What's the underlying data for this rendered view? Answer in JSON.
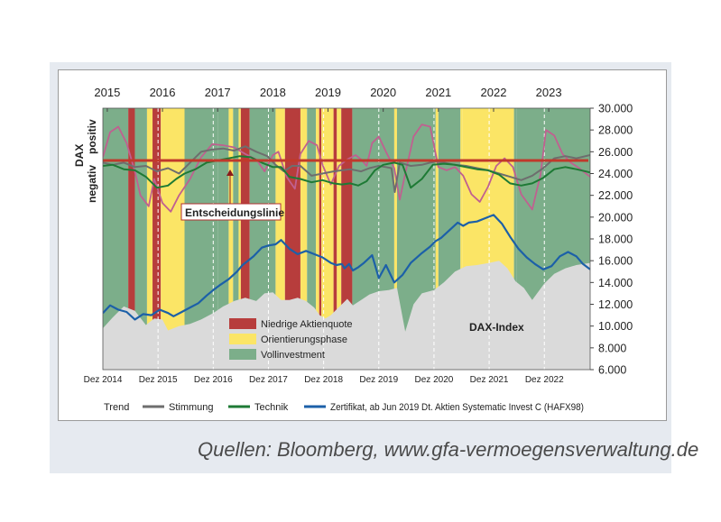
{
  "source": "Quellen: Bloomberg, www.gfa-vermoegensverwaltung.de",
  "colors": {
    "red": "#b73d3c",
    "yellow": "#fbe566",
    "green": "#7cae8a",
    "grey_area": "#dadada",
    "stimmung": "#6e6e6e",
    "technik": "#1e7a35",
    "zertifikat": "#1c60a8",
    "trend": "#c06090",
    "decision": "#c0392b"
  },
  "chart_data": {
    "type": "line",
    "title": "",
    "top_axis_years": [
      "2015",
      "2016",
      "2017",
      "2018",
      "2019",
      "2020",
      "2021",
      "2022",
      "2023"
    ],
    "bottom_axis_labels": [
      "Dez 2014",
      "Dez 2015",
      "Dez 2016",
      "Dez 2017",
      "Dez 2018",
      "Dez 2019",
      "Dez 2020",
      "Dez 2021",
      "Dez 2022"
    ],
    "y_right_ticks": [
      "30.000",
      "28.000",
      "26.000",
      "24.000",
      "22.000",
      "20.000",
      "18.000",
      "16.000",
      "14.000",
      "12.000",
      "10.000",
      "8.000",
      "6.000"
    ],
    "y_right_range": [
      6000,
      30000
    ],
    "x_range": [
      2014.92,
      2023.75
    ],
    "y_left_label": "DAX",
    "y_left_positive": "positiv",
    "y_left_negative": "negativ",
    "regimes": [
      {
        "start": 2014.92,
        "end": 2015.38,
        "phase": "green"
      },
      {
        "start": 2015.38,
        "end": 2015.5,
        "phase": "red"
      },
      {
        "start": 2015.5,
        "end": 2015.72,
        "phase": "green"
      },
      {
        "start": 2015.72,
        "end": 2015.82,
        "phase": "yellow"
      },
      {
        "start": 2015.82,
        "end": 2015.97,
        "phase": "red"
      },
      {
        "start": 2015.97,
        "end": 2016.4,
        "phase": "yellow"
      },
      {
        "start": 2016.4,
        "end": 2017.0,
        "phase": "green"
      },
      {
        "start": 2017.0,
        "end": 2017.2,
        "phase": "green"
      },
      {
        "start": 2017.2,
        "end": 2017.28,
        "phase": "yellow"
      },
      {
        "start": 2017.28,
        "end": 2017.38,
        "phase": "green"
      },
      {
        "start": 2017.38,
        "end": 2017.42,
        "phase": "yellow"
      },
      {
        "start": 2017.42,
        "end": 2017.58,
        "phase": "red"
      },
      {
        "start": 2017.58,
        "end": 2018.05,
        "phase": "green"
      },
      {
        "start": 2018.05,
        "end": 2018.22,
        "phase": "yellow"
      },
      {
        "start": 2018.22,
        "end": 2018.5,
        "phase": "red"
      },
      {
        "start": 2018.5,
        "end": 2018.62,
        "phase": "yellow"
      },
      {
        "start": 2018.62,
        "end": 2018.78,
        "phase": "green"
      },
      {
        "start": 2018.78,
        "end": 2018.84,
        "phase": "yellow"
      },
      {
        "start": 2018.84,
        "end": 2018.88,
        "phase": "red"
      },
      {
        "start": 2018.88,
        "end": 2019.1,
        "phase": "yellow"
      },
      {
        "start": 2019.1,
        "end": 2019.16,
        "phase": "red"
      },
      {
        "start": 2019.16,
        "end": 2019.24,
        "phase": "yellow"
      },
      {
        "start": 2019.24,
        "end": 2019.44,
        "phase": "red"
      },
      {
        "start": 2019.44,
        "end": 2020.2,
        "phase": "green"
      },
      {
        "start": 2020.2,
        "end": 2020.25,
        "phase": "yellow"
      },
      {
        "start": 2020.25,
        "end": 2020.95,
        "phase": "green"
      },
      {
        "start": 2020.95,
        "end": 2021.0,
        "phase": "yellow"
      },
      {
        "start": 2021.0,
        "end": 2021.4,
        "phase": "green"
      },
      {
        "start": 2021.4,
        "end": 2021.44,
        "phase": "yellow"
      },
      {
        "start": 2021.44,
        "end": 2022.37,
        "phase": "yellow"
      },
      {
        "start": 2022.37,
        "end": 2022.42,
        "phase": "green"
      },
      {
        "start": 2022.42,
        "end": 2023.75,
        "phase": "green"
      }
    ],
    "dax_index": {
      "name": "DAX-Index",
      "x": [
        2014.92,
        2015.1,
        2015.3,
        2015.5,
        2015.7,
        2015.85,
        2016.0,
        2016.1,
        2016.3,
        2016.5,
        2016.7,
        2016.92,
        2017.1,
        2017.3,
        2017.5,
        2017.7,
        2017.85,
        2018.0,
        2018.15,
        2018.3,
        2018.45,
        2018.6,
        2018.75,
        2018.85,
        2018.95,
        2019.05,
        2019.15,
        2019.25,
        2019.35,
        2019.45,
        2019.6,
        2019.75,
        2019.92,
        2020.1,
        2020.25,
        2020.4,
        2020.55,
        2020.7,
        2020.92,
        2021.1,
        2021.3,
        2021.5,
        2021.7,
        2021.92,
        2022.1,
        2022.25,
        2022.4,
        2022.55,
        2022.7,
        2022.92,
        2023.1,
        2023.3,
        2023.5,
        2023.75
      ],
      "values": [
        9800,
        10800,
        11800,
        11400,
        10100,
        10700,
        10600,
        9600,
        10000,
        10200,
        10600,
        11200,
        11800,
        12300,
        12600,
        12300,
        13000,
        13100,
        12400,
        12400,
        12600,
        12300,
        11700,
        11000,
        10700,
        11000,
        11500,
        12000,
        12500,
        11900,
        12400,
        12900,
        13200,
        13300,
        13500,
        9500,
        12000,
        13000,
        13300,
        14000,
        15000,
        15500,
        15600,
        15800,
        16000,
        15300,
        14100,
        13500,
        12400,
        13900,
        14800,
        15300,
        15600,
        15800
      ]
    },
    "series": [
      {
        "name": "Zertifikat, ab Jun 2019 Dt. Aktien Systematic Invest C (HAFX98)",
        "x": [
          2014.92,
          2015.05,
          2015.2,
          2015.35,
          2015.5,
          2015.65,
          2015.8,
          2015.95,
          2016.1,
          2016.2,
          2016.35,
          2016.5,
          2016.65,
          2016.8,
          2016.92,
          2017.05,
          2017.2,
          2017.35,
          2017.45,
          2017.55,
          2017.65,
          2017.8,
          2017.92,
          2018.05,
          2018.15,
          2018.3,
          2018.45,
          2018.6,
          2018.75,
          2018.9,
          2019.05,
          2019.15,
          2019.25,
          2019.3,
          2019.38,
          2019.45,
          2019.55,
          2019.65,
          2019.8,
          2019.92,
          2020.05,
          2020.2,
          2020.35,
          2020.5,
          2020.7,
          2020.85,
          2020.95,
          2021.05,
          2021.2,
          2021.35,
          2021.45,
          2021.55,
          2021.7,
          2021.85,
          2022.0,
          2022.15,
          2022.3,
          2022.45,
          2022.6,
          2022.75,
          2022.9,
          2023.05,
          2023.2,
          2023.35,
          2023.5,
          2023.62,
          2023.75
        ],
        "values": [
          11200,
          11900,
          11500,
          11300,
          10600,
          11100,
          11000,
          11500,
          11200,
          10900,
          11300,
          11700,
          12100,
          12800,
          13300,
          13800,
          14300,
          15000,
          15600,
          16000,
          16400,
          17200,
          17400,
          17500,
          17900,
          17100,
          16600,
          16900,
          16600,
          16300,
          15800,
          15600,
          15700,
          15300,
          15700,
          15100,
          15400,
          15800,
          16500,
          14400,
          15600,
          14000,
          14700,
          15800,
          16700,
          17300,
          17800,
          18100,
          18800,
          19500,
          19200,
          19500,
          19600,
          19900,
          20200,
          19400,
          18200,
          17100,
          16300,
          15700,
          15200,
          15500,
          16400,
          16800,
          16400,
          15700,
          15200
        ]
      },
      {
        "name": "Stimmung",
        "x": [
          2014.92,
          2015.1,
          2015.3,
          2015.5,
          2015.7,
          2015.9,
          2016.1,
          2016.3,
          2016.5,
          2016.7,
          2016.9,
          2017.1,
          2017.3,
          2017.5,
          2017.7,
          2017.9,
          2018.05,
          2018.2,
          2018.35,
          2018.5,
          2018.7,
          2018.9,
          2019.1,
          2019.25,
          2019.4,
          2019.5,
          2019.6,
          2019.75,
          2019.92,
          2020.05,
          2020.15,
          2020.21,
          2020.3,
          2020.5,
          2020.7,
          2020.85,
          2020.95,
          2021.1,
          2021.3,
          2021.5,
          2021.7,
          2021.9,
          2022.1,
          2022.3,
          2022.5,
          2022.7,
          2022.9,
          2023.1,
          2023.3,
          2023.5,
          2023.75
        ],
        "values": [
          25000,
          24800,
          25000,
          24600,
          24700,
          24200,
          24500,
          24000,
          25000,
          26000,
          26200,
          26300,
          26100,
          26500,
          26000,
          25600,
          24800,
          24200,
          24700,
          24700,
          23800,
          24000,
          24200,
          24300,
          24400,
          24300,
          24200,
          24500,
          24700,
          24600,
          24500,
          22300,
          25000,
          24700,
          24800,
          25000,
          25100,
          25000,
          24800,
          24700,
          24500,
          24300,
          24000,
          23700,
          23400,
          23800,
          24500,
          25400,
          25600,
          25400,
          25700
        ]
      },
      {
        "name": "Technik",
        "x": [
          2014.92,
          2015.1,
          2015.3,
          2015.5,
          2015.7,
          2015.9,
          2016.1,
          2016.25,
          2016.4,
          2016.6,
          2016.8,
          2017.0,
          2017.2,
          2017.4,
          2017.6,
          2017.8,
          2018.0,
          2018.15,
          2018.3,
          2018.5,
          2018.7,
          2018.9,
          2019.1,
          2019.25,
          2019.4,
          2019.55,
          2019.7,
          2019.85,
          2020.0,
          2020.2,
          2020.35,
          2020.5,
          2020.7,
          2020.9,
          2021.1,
          2021.3,
          2021.5,
          2021.7,
          2021.9,
          2022.1,
          2022.3,
          2022.5,
          2022.7,
          2022.9,
          2023.1,
          2023.3,
          2023.5,
          2023.75
        ],
        "values": [
          24700,
          24800,
          24400,
          24300,
          23700,
          22700,
          22900,
          23500,
          24000,
          24400,
          25000,
          25200,
          25400,
          25600,
          25500,
          25000,
          24600,
          24600,
          23700,
          23500,
          23200,
          23400,
          23100,
          23000,
          23100,
          22900,
          23300,
          24300,
          24800,
          25000,
          24800,
          22700,
          23500,
          24800,
          24900,
          24800,
          24600,
          24400,
          24300,
          23900,
          23100,
          22900,
          23100,
          23600,
          24400,
          24600,
          24400,
          24100
        ]
      },
      {
        "name": "Trend",
        "x": [
          2014.92,
          2015.05,
          2015.2,
          2015.35,
          2015.5,
          2015.6,
          2015.75,
          2015.85,
          2016.0,
          2016.15,
          2016.3,
          2016.5,
          2016.7,
          2016.9,
          2017.1,
          2017.3,
          2017.5,
          2017.7,
          2017.85,
          2018.0,
          2018.1,
          2018.25,
          2018.4,
          2018.5,
          2018.65,
          2018.8,
          2018.9,
          2019.05,
          2019.2,
          2019.35,
          2019.5,
          2019.6,
          2019.7,
          2019.8,
          2019.92,
          2020.05,
          2020.2,
          2020.3,
          2020.4,
          2020.55,
          2020.7,
          2020.85,
          2021.0,
          2021.15,
          2021.3,
          2021.45,
          2021.6,
          2021.75,
          2021.9,
          2022.05,
          2022.2,
          2022.35,
          2022.5,
          2022.7,
          2022.85,
          2022.95,
          2023.1,
          2023.25,
          2023.4,
          2023.55,
          2023.75
        ],
        "values": [
          25500,
          27800,
          28300,
          26800,
          24200,
          22000,
          21000,
          23500,
          21300,
          20500,
          22000,
          23500,
          25500,
          26700,
          26600,
          26400,
          25800,
          25300,
          24200,
          25700,
          26000,
          23700,
          22600,
          25800,
          27000,
          26600,
          24800,
          23000,
          24700,
          25300,
          25700,
          25300,
          24700,
          26800,
          27400,
          26000,
          24500,
          21600,
          24000,
          27400,
          28500,
          28300,
          24600,
          24300,
          24600,
          23800,
          22100,
          21400,
          22800,
          24700,
          25400,
          24600,
          22100,
          20700,
          23900,
          28000,
          27500,
          25800,
          25000,
          24500,
          23700
        ]
      }
    ],
    "decision_line": {
      "label": "Entscheidungslinie",
      "value": 25200
    },
    "annotations": [
      {
        "text": "DAX-Index",
        "x": 2021.25,
        "y": 10000
      }
    ],
    "legend_phases": [
      "Niedrige Aktienquote",
      "Orientierungsphase",
      "Vollinvestment"
    ],
    "legend_lines": [
      "Trend",
      "Stimmung",
      "Technik",
      "Zertifikat, ab Jun 2019 Dt. Aktien Systematic Invest C (HAFX98)"
    ]
  }
}
